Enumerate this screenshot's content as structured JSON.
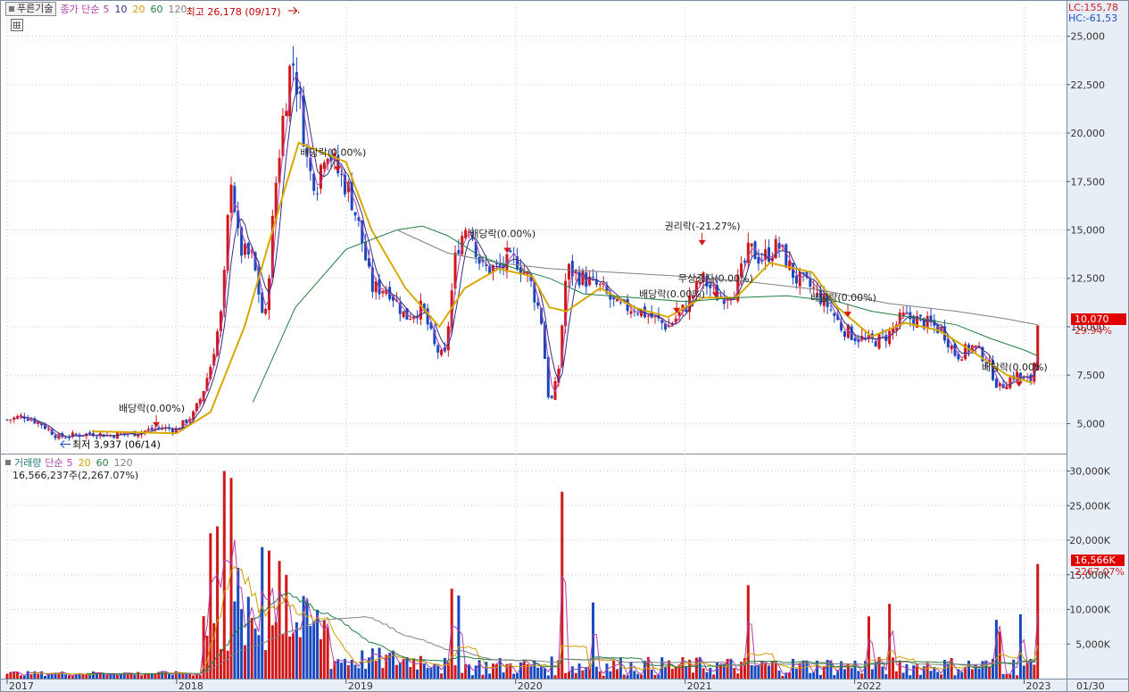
{
  "toolbar": {
    "tech_button": "푸른기술",
    "price_label": "종가 단순",
    "ma_periods": [
      {
        "label": "5",
        "color": "#b040b0"
      },
      {
        "label": "10",
        "color": "#303080"
      },
      {
        "label": "20",
        "color": "#d0a000"
      },
      {
        "label": "60",
        "color": "#208040"
      },
      {
        "label": "120",
        "color": "#808080"
      }
    ]
  },
  "volume_legend": {
    "title": "거래량",
    "ma_label": "단순",
    "periods": [
      {
        "label": "5",
        "color": "#b040b0"
      },
      {
        "label": "20",
        "color": "#d0a000"
      },
      {
        "label": "60",
        "color": "#208040"
      },
      {
        "label": "120",
        "color": "#808080"
      }
    ],
    "current": "16,566,237주(2,267.07%)"
  },
  "right_info": {
    "lc": "LC:155,78",
    "hc": "HC:-61,53"
  },
  "price_tag": {
    "value": "10,070",
    "change": "29.94%"
  },
  "volume_tag": {
    "value": "16,566K",
    "change": "2267.07%"
  },
  "chart_data": {
    "type": "candlestick",
    "price_axis": {
      "range": [
        3500,
        26500
      ],
      "ticks": [
        "5,000",
        "7,500",
        "10,000",
        "12,500",
        "15,000",
        "17,500",
        "20,000",
        "22,500",
        "25,000"
      ]
    },
    "volume_axis": {
      "range": [
        0,
        32000
      ],
      "ticks": [
        "5,000K",
        "10,000K",
        "15,000K",
        "20,000K",
        "25,000K",
        "30,000K"
      ]
    },
    "x_axis": {
      "range": [
        2017.0,
        2023.25
      ],
      "ticks": [
        {
          "label": "2017",
          "x": 2017.0
        },
        {
          "label": "2018",
          "x": 2018.0
        },
        {
          "label": "2019",
          "x": 2019.0
        },
        {
          "label": "2020",
          "x": 2020.0
        },
        {
          "label": "2021",
          "x": 2021.0
        },
        {
          "label": "2022",
          "x": 2022.0
        },
        {
          "label": "2023",
          "x": 2023.0
        }
      ],
      "end_label": "01/30"
    },
    "price_path": [
      [
        2017.0,
        5200
      ],
      [
        2017.1,
        5400
      ],
      [
        2017.2,
        5000
      ],
      [
        2017.3,
        4300
      ],
      [
        2017.4,
        4400
      ],
      [
        2017.5,
        4500
      ],
      [
        2017.6,
        4400
      ],
      [
        2017.75,
        4500
      ],
      [
        2017.9,
        4800
      ],
      [
        2018.0,
        4700
      ],
      [
        2018.1,
        5500
      ],
      [
        2018.15,
        6500
      ],
      [
        2018.2,
        8000
      ],
      [
        2018.27,
        11000
      ],
      [
        2018.32,
        18000
      ],
      [
        2018.37,
        14000
      ],
      [
        2018.45,
        13500
      ],
      [
        2018.52,
        10000
      ],
      [
        2018.58,
        17000
      ],
      [
        2018.63,
        21000
      ],
      [
        2018.68,
        24000
      ],
      [
        2018.72,
        22000
      ],
      [
        2018.78,
        18000
      ],
      [
        2018.83,
        17500
      ],
      [
        2018.88,
        19500
      ],
      [
        2018.95,
        18000
      ],
      [
        2019.02,
        17000
      ],
      [
        2019.08,
        15000
      ],
      [
        2019.15,
        12000
      ],
      [
        2019.25,
        12000
      ],
      [
        2019.35,
        10500
      ],
      [
        2019.45,
        11000
      ],
      [
        2019.52,
        9000
      ],
      [
        2019.58,
        8300
      ],
      [
        2019.65,
        14000
      ],
      [
        2019.72,
        15500
      ],
      [
        2019.8,
        13000
      ],
      [
        2019.9,
        13000
      ],
      [
        2020.0,
        13500
      ],
      [
        2020.08,
        12500
      ],
      [
        2020.15,
        10500
      ],
      [
        2020.2,
        5800
      ],
      [
        2020.25,
        7500
      ],
      [
        2020.3,
        13000
      ],
      [
        2020.4,
        12500
      ],
      [
        2020.5,
        12000
      ],
      [
        2020.6,
        11000
      ],
      [
        2020.7,
        11000
      ],
      [
        2020.8,
        10500
      ],
      [
        2020.9,
        10000
      ],
      [
        2021.0,
        11000
      ],
      [
        2021.1,
        12500
      ],
      [
        2021.2,
        11500
      ],
      [
        2021.3,
        12000
      ],
      [
        2021.38,
        14000
      ],
      [
        2021.45,
        13500
      ],
      [
        2021.55,
        14200
      ],
      [
        2021.65,
        12500
      ],
      [
        2021.75,
        12000
      ],
      [
        2021.85,
        11000
      ],
      [
        2021.92,
        10000
      ],
      [
        2022.0,
        9500
      ],
      [
        2022.1,
        9200
      ],
      [
        2022.2,
        9600
      ],
      [
        2022.28,
        10500
      ],
      [
        2022.35,
        10400
      ],
      [
        2022.45,
        10100
      ],
      [
        2022.52,
        9800
      ],
      [
        2022.6,
        8500
      ],
      [
        2022.7,
        9000
      ],
      [
        2022.78,
        8300
      ],
      [
        2022.85,
        6800
      ],
      [
        2022.95,
        7600
      ],
      [
        2023.0,
        7200
      ],
      [
        2023.05,
        7300
      ],
      [
        2023.08,
        10070
      ]
    ],
    "series": [
      {
        "name": "20",
        "color": "#d8a800",
        "values": [
          [
            2017.5,
            4600
          ],
          [
            2018.0,
            4500
          ],
          [
            2018.2,
            5600
          ],
          [
            2018.4,
            10000
          ],
          [
            2018.6,
            16000
          ],
          [
            2018.72,
            19500
          ],
          [
            2019.0,
            18500
          ],
          [
            2019.15,
            15000
          ],
          [
            2019.35,
            12000
          ],
          [
            2019.55,
            10000
          ],
          [
            2019.7,
            12000
          ],
          [
            2019.9,
            13000
          ],
          [
            2020.1,
            12600
          ],
          [
            2020.2,
            11000
          ],
          [
            2020.3,
            10800
          ],
          [
            2020.5,
            12000
          ],
          [
            2020.7,
            11000
          ],
          [
            2020.9,
            10500
          ],
          [
            2021.1,
            11500
          ],
          [
            2021.3,
            11500
          ],
          [
            2021.5,
            13300
          ],
          [
            2021.75,
            12800
          ],
          [
            2021.9,
            11000
          ],
          [
            2022.1,
            9500
          ],
          [
            2022.3,
            10200
          ],
          [
            2022.5,
            9800
          ],
          [
            2022.7,
            8700
          ],
          [
            2022.9,
            7500
          ],
          [
            2023.05,
            7100
          ]
        ]
      },
      {
        "name": "60",
        "color": "#208040",
        "values": [
          [
            2018.45,
            6100
          ],
          [
            2018.7,
            11000
          ],
          [
            2019.0,
            14000
          ],
          [
            2019.3,
            15000
          ],
          [
            2019.45,
            15200
          ],
          [
            2019.6,
            14700
          ],
          [
            2019.8,
            13600
          ],
          [
            2020.0,
            13000
          ],
          [
            2020.2,
            12500
          ],
          [
            2020.4,
            11700
          ],
          [
            2020.7,
            11500
          ],
          [
            2021.0,
            11300
          ],
          [
            2021.3,
            11500
          ],
          [
            2021.6,
            11600
          ],
          [
            2021.9,
            11300
          ],
          [
            2022.1,
            10800
          ],
          [
            2022.4,
            10400
          ],
          [
            2022.6,
            10100
          ],
          [
            2022.8,
            9400
          ],
          [
            2023.0,
            8800
          ],
          [
            2023.08,
            8500
          ]
        ]
      },
      {
        "name": "120",
        "color": "#808080",
        "values": [
          [
            2019.3,
            15000
          ],
          [
            2019.6,
            13800
          ],
          [
            2019.9,
            13300
          ],
          [
            2020.2,
            13000
          ],
          [
            2020.6,
            12800
          ],
          [
            2021.0,
            12600
          ],
          [
            2021.4,
            12300
          ],
          [
            2021.8,
            11900
          ],
          [
            2022.2,
            11200
          ],
          [
            2022.6,
            10800
          ],
          [
            2022.9,
            10400
          ],
          [
            2023.08,
            10100
          ]
        ]
      }
    ],
    "annotations": [
      {
        "text": "최고 26,178 (09/17)",
        "x": 2018.72,
        "y": 26178,
        "color": "#c00000",
        "arrow": "right"
      },
      {
        "text": "최저 3,937 (06/14)",
        "x": 2017.3,
        "y": 3937,
        "color": "#000000",
        "arrow": "left"
      },
      {
        "text": "배당락(0.00%)",
        "x": 2017.88,
        "y": 4800
      },
      {
        "text": "배당락(0.00%)",
        "x": 2018.95,
        "y": 18000
      },
      {
        "text": "배당락(0.00%)",
        "x": 2019.95,
        "y": 13800
      },
      {
        "text": "권리락(-21.27%)",
        "x": 2021.1,
        "y": 14200
      },
      {
        "text": "무상증자(0.00%)",
        "x": 2021.18,
        "y": 11500
      },
      {
        "text": "배당락(0.00%)",
        "x": 2020.95,
        "y": 10700
      },
      {
        "text": "배당락(0.00%)",
        "x": 2021.96,
        "y": 10500
      },
      {
        "text": "배당락(0.00%)",
        "x": 2022.97,
        "y": 6900
      }
    ],
    "volume_spikes": [
      [
        2018.28,
        30000
      ],
      [
        2018.32,
        29000
      ],
      [
        2018.24,
        22000
      ],
      [
        2018.2,
        21000
      ],
      [
        2018.36,
        16000
      ],
      [
        2018.5,
        19000
      ],
      [
        2018.55,
        18500
      ],
      [
        2018.6,
        17000
      ],
      [
        2018.65,
        15000
      ],
      [
        2019.63,
        13000
      ],
      [
        2019.66,
        12000
      ],
      [
        2020.28,
        27000
      ],
      [
        2020.46,
        11000
      ],
      [
        2021.37,
        13500
      ],
      [
        2022.08,
        9000
      ],
      [
        2022.21,
        10800
      ],
      [
        2022.83,
        8500
      ],
      [
        2022.86,
        6800
      ],
      [
        2022.98,
        9300
      ],
      [
        2023.08,
        16566
      ]
    ]
  }
}
